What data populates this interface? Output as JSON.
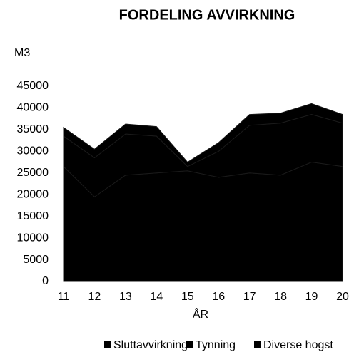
{
  "chart_data": {
    "type": "stacked_area",
    "title": "FORDELING AVVIRKNING",
    "y_label": "M3",
    "x_label": "ÅR",
    "categories": [
      "11",
      "12",
      "13",
      "14",
      "15",
      "16",
      "17",
      "18",
      "19",
      "20"
    ],
    "series": [
      {
        "name": "Sluttavvirkning",
        "color": "#000000",
        "values": [
          26500,
          19500,
          24500,
          25000,
          25500,
          24000,
          25000,
          24500,
          27500,
          26500
        ]
      },
      {
        "name": "Tynning",
        "color": "#000000",
        "values": [
          7000,
          9000,
          9500,
          8500,
          1000,
          6000,
          11000,
          12000,
          11000,
          10000
        ]
      },
      {
        "name": "Diverse hogst",
        "color": "#000000",
        "values": [
          2000,
          2000,
          2300,
          2200,
          1000,
          2000,
          2500,
          2300,
          2500,
          2000
        ]
      }
    ],
    "ylim": [
      0,
      45000
    ],
    "yticks": [
      0,
      5000,
      10000,
      15000,
      20000,
      25000,
      30000,
      35000,
      40000,
      45000
    ],
    "legend": "bottom"
  }
}
